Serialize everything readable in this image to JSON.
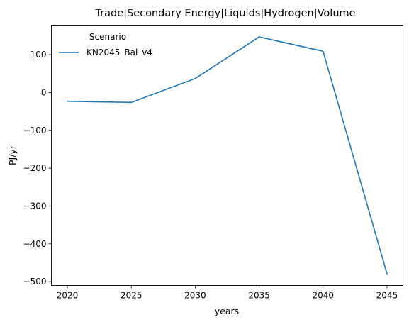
{
  "chart_data": {
    "type": "line",
    "title": "Trade|Secondary Energy|Liquids|Hydrogen|Volume",
    "xlabel": "years",
    "ylabel": "PJ/yr",
    "x": [
      2020,
      2025,
      2030,
      2035,
      2040,
      2045
    ],
    "series": [
      {
        "name": "KN2045_Bal_v4",
        "color": "#1f77b4",
        "values": [
          -23,
          -26,
          37,
          147,
          109,
          -479
        ]
      }
    ],
    "x_ticks": [
      "2020",
      "2025",
      "2030",
      "2035",
      "2040",
      "2045"
    ],
    "y_ticks": [
      "100",
      "0",
      "−100",
      "−200",
      "−300",
      "−400",
      "−500"
    ],
    "y_tick_values": [
      100,
      0,
      -100,
      -200,
      -300,
      -400,
      -500
    ],
    "xlim": [
      2018.75,
      2046.25
    ],
    "ylim": [
      -510,
      178
    ],
    "legend": {
      "title": "Scenario",
      "position": "top-left"
    },
    "grid": false
  }
}
